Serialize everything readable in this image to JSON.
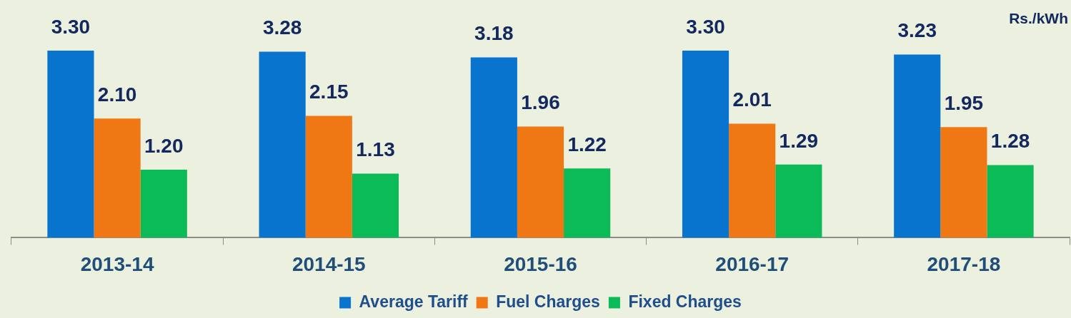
{
  "chart_data": {
    "type": "bar",
    "ylabel": "Rs./kWh",
    "categories": [
      "2013-14",
      "2014-15",
      "2015-16",
      "2016-17",
      "2017-18"
    ],
    "series": [
      {
        "name": "Average Tariff",
        "color": "#0874ce",
        "values": [
          3.3,
          3.28,
          3.18,
          3.3,
          3.23
        ],
        "value_labels": [
          "3.30",
          "3.28",
          "3.18",
          "3.30",
          "3.23"
        ]
      },
      {
        "name": "Fuel Charges",
        "color": "#f07814",
        "values": [
          2.1,
          2.15,
          1.96,
          2.01,
          1.95
        ],
        "value_labels": [
          "2.10",
          "2.15",
          "1.96",
          "2.01",
          "1.95"
        ]
      },
      {
        "name": "Fixed Charges",
        "color": "#0abb58",
        "values": [
          1.2,
          1.13,
          1.22,
          1.29,
          1.28
        ],
        "value_labels": [
          "1.20",
          "1.13",
          "1.22",
          "1.29",
          "1.28"
        ]
      }
    ],
    "legend": "bottom"
  }
}
